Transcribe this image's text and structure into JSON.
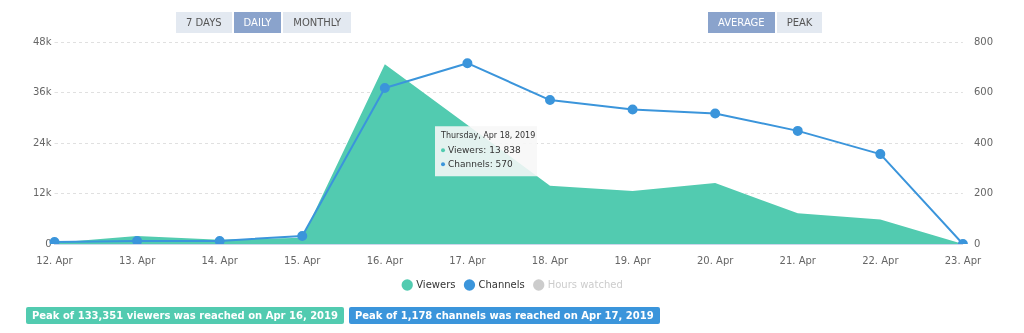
{
  "chart_data": {
    "type": "line",
    "categories": [
      "12. Apr",
      "13. Apr",
      "14. Apr",
      "15. Apr",
      "16. Apr",
      "17. Apr",
      "18. Apr",
      "19. Apr",
      "20. Apr",
      "21. Apr",
      "22. Apr",
      "23. Apr"
    ],
    "series": [
      {
        "name": "Viewers",
        "type": "area",
        "color": "#52cbb0",
        "marker": "none",
        "values": [
          300,
          1900,
          1000,
          1500,
          42700,
          null,
          13838,
          12600,
          14500,
          7300,
          5800,
          0
        ]
      },
      {
        "name": "Channels",
        "type": "line",
        "axis": "y2",
        "color": "#3b95db",
        "values": [
          8,
          12,
          12,
          32,
          618,
          716,
          570,
          533,
          517,
          448,
          356,
          0
        ]
      },
      {
        "name": "Hours watched",
        "type": "line",
        "color": "#cccccc",
        "values": [
          null,
          null,
          null,
          null,
          null,
          null,
          null,
          null,
          null,
          null,
          null,
          null
        ]
      }
    ],
    "ylim": [
      0,
      48000
    ],
    "yticks": [
      0,
      {
        "value": 12000,
        "label": "12k"
      },
      {
        "value": 24000,
        "label": "24k"
      },
      {
        "value": 36000,
        "label": "36k"
      },
      {
        "value": 48000,
        "label": "48k"
      }
    ],
    "y2lim": [
      0,
      800
    ],
    "y2ticks": [
      0,
      200,
      400,
      600,
      800
    ],
    "grid": "y",
    "legend": "bottom",
    "marker": "circle",
    "line_style": "solid",
    "annotations": [
      "7 DAYS",
      "DAILY",
      "MONTHLY",
      "AVERAGE",
      "PEAK",
      "Thursday, Apr 18, 2019",
      "Viewers: 13 838",
      "Channels: 570",
      "Peak of 133,351 viewers was reached on Apr 16, 2019",
      "Peak of 1,178 channels was reached on Apr 17, 2019"
    ]
  }
}
